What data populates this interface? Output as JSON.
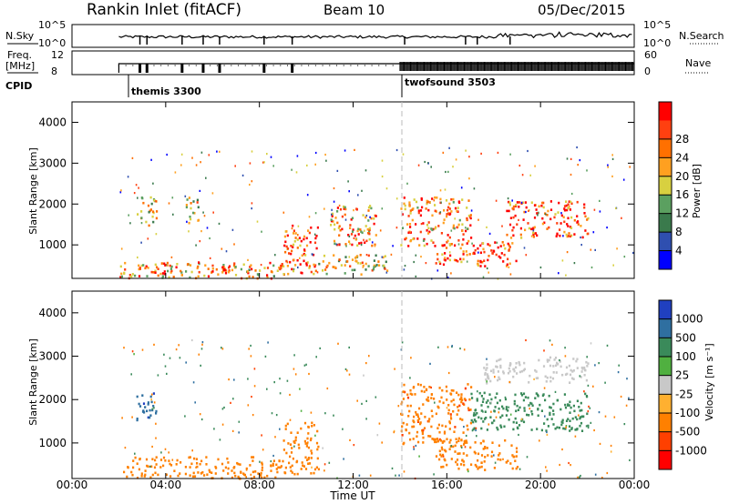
{
  "header": {
    "station": "Rankin Inlet (fitACF)",
    "beam": "Beam 10",
    "date": "05/Dec/2015"
  },
  "strips": {
    "nsky_label": "N.Sky",
    "nsky_ticks": [
      "10^5",
      "10^0"
    ],
    "nsearch_label": "N.Search",
    "nsearch_ticks": [
      "10^5",
      "10^0"
    ],
    "freq_label": [
      "Freq.",
      "[MHz]"
    ],
    "freq_ticks": [
      "12",
      "8"
    ],
    "nave_label": "Nave",
    "nave_ticks": [
      "60",
      "0"
    ],
    "cpid_label": "CPID",
    "cpid_segments": [
      {
        "name": "themis 3300",
        "start_hour": 2.0
      },
      {
        "name": "twofsound 3503",
        "start_hour": 14.0
      }
    ]
  },
  "axes": {
    "xlabel": "Time UT",
    "xticks": [
      "00:00",
      "04:00",
      "08:00",
      "12:00",
      "16:00",
      "20:00",
      "00:00"
    ],
    "ylabel": "Slant Range [km]",
    "yticks": [
      "1000",
      "2000",
      "3000",
      "4000"
    ]
  },
  "colors": {
    "power": [
      "#0000ff",
      "#2f4fb0",
      "#3a7a4c",
      "#5ba060",
      "#d8d040",
      "#ffa020",
      "#ff7000",
      "#ff4010",
      "#ff0000"
    ],
    "velocity": [
      "#2040c0",
      "#2f6fa0",
      "#3a8a5a",
      "#50b040",
      "#c8c8c8",
      "#ffb030",
      "#ff8000",
      "#ff4000",
      "#ff0000"
    ]
  },
  "chart_data": [
    {
      "type": "heatmap",
      "panel": "Power",
      "x_range_hours": [
        0,
        24
      ],
      "y_range_km": [
        180,
        4500
      ],
      "colorbar_label": "Power [dB]",
      "colorbar_ticks": [
        "4",
        "8",
        "12",
        "16",
        "20",
        "24",
        "28"
      ],
      "colorbar_range": [
        0,
        32
      ],
      "grid": false,
      "regions": [
        {
          "x": [
            2.0,
            9.0
          ],
          "y": [
            200,
            600
          ],
          "value": 20
        },
        {
          "x": [
            3.0,
            4.0
          ],
          "y": [
            300,
            600
          ],
          "value": 26
        },
        {
          "x": [
            5.5,
            6.8
          ],
          "y": [
            250,
            550
          ],
          "value": 24
        },
        {
          "x": [
            9.0,
            10.5
          ],
          "y": [
            300,
            1500
          ],
          "value": 28
        },
        {
          "x": [
            10.5,
            13.5
          ],
          "y": [
            300,
            800
          ],
          "value": 18
        },
        {
          "x": [
            11.0,
            13.0
          ],
          "y": [
            1000,
            2000
          ],
          "value": 22
        },
        {
          "x": [
            14.0,
            17.0
          ],
          "y": [
            1000,
            2200
          ],
          "value": 24
        },
        {
          "x": [
            15.5,
            19.0
          ],
          "y": [
            500,
            1100
          ],
          "value": 28
        },
        {
          "x": [
            18.5,
            22.0
          ],
          "y": [
            1200,
            2100
          ],
          "value": 26
        },
        {
          "x": [
            2.7,
            3.6
          ],
          "y": [
            1500,
            2200
          ],
          "value": 16
        },
        {
          "x": [
            4.8,
            5.4
          ],
          "y": [
            1500,
            2200
          ],
          "value": 18
        }
      ]
    },
    {
      "type": "heatmap",
      "panel": "Velocity",
      "x_range_hours": [
        0,
        24
      ],
      "y_range_km": [
        180,
        4500
      ],
      "colorbar_label": "Velocity [m s⁻¹]",
      "colorbar_ticks": [
        "1000",
        "500",
        "100",
        "25",
        "-25",
        "-100",
        "-500",
        "-1000"
      ],
      "grid": false,
      "regions": [
        {
          "x": [
            2.0,
            9.0
          ],
          "y": [
            200,
            700
          ],
          "value": -150
        },
        {
          "x": [
            2.7,
            3.6
          ],
          "y": [
            1500,
            2200
          ],
          "value": 800
        },
        {
          "x": [
            9.0,
            10.5
          ],
          "y": [
            300,
            1500
          ],
          "value": -300
        },
        {
          "x": [
            14.0,
            17.0
          ],
          "y": [
            1000,
            2400
          ],
          "value": -400
        },
        {
          "x": [
            17.0,
            22.0
          ],
          "y": [
            1300,
            2200
          ],
          "value": 200
        },
        {
          "x": [
            17.5,
            22.0
          ],
          "y": [
            2400,
            3000
          ],
          "value": 0
        },
        {
          "x": [
            15.5,
            19.0
          ],
          "y": [
            400,
            1100
          ],
          "value": -200
        }
      ]
    }
  ]
}
